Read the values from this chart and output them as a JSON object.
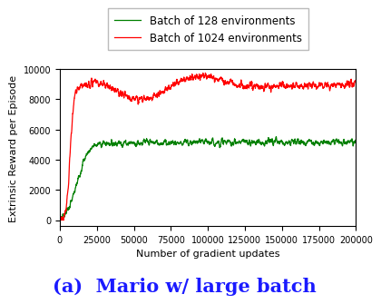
{
  "title": "",
  "xlabel": "Number of gradient updates",
  "ylabel": "Extrinsic Reward per Episode",
  "caption": "(a)  Mario w/ large batch",
  "xlim": [
    0,
    200000
  ],
  "ylim": [
    -400,
    10000
  ],
  "yticks": [
    0,
    2000,
    4000,
    6000,
    8000,
    10000
  ],
  "xticks": [
    0,
    25000,
    50000,
    75000,
    100000,
    125000,
    150000,
    175000,
    200000
  ],
  "color_128": "#008000",
  "color_1024": "#ff0000",
  "label_128": "Batch of 128 environments",
  "label_1024": "Batch of 1024 environments",
  "caption_color": "#1a1aff",
  "seed": 7,
  "n_points": 2000
}
